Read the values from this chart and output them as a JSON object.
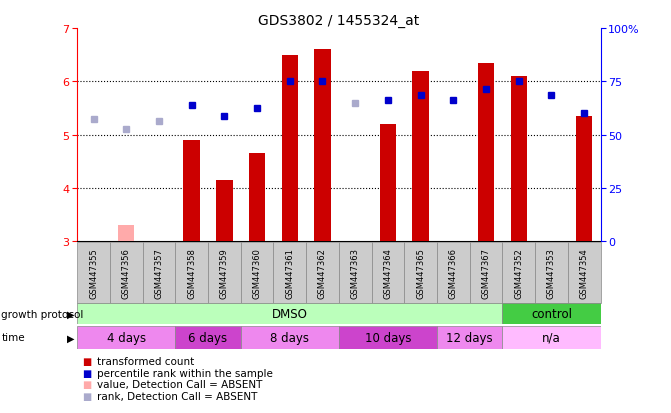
{
  "title": "GDS3802 / 1455324_at",
  "samples": [
    "GSM447355",
    "GSM447356",
    "GSM447357",
    "GSM447358",
    "GSM447359",
    "GSM447360",
    "GSM447361",
    "GSM447362",
    "GSM447363",
    "GSM447364",
    "GSM447365",
    "GSM447366",
    "GSM447367",
    "GSM447352",
    "GSM447353",
    "GSM447354"
  ],
  "bar_values": [
    3.0,
    3.3,
    3.0,
    4.9,
    4.15,
    4.65,
    6.5,
    6.6,
    3.0,
    5.2,
    6.2,
    3.0,
    6.35,
    6.1,
    3.0,
    5.35
  ],
  "bar_absent": [
    true,
    true,
    true,
    false,
    false,
    false,
    false,
    false,
    true,
    false,
    false,
    false,
    false,
    false,
    false,
    false
  ],
  "rank_values": [
    5.3,
    5.1,
    5.25,
    5.55,
    5.35,
    5.5,
    6.0,
    6.0,
    5.6,
    5.65,
    5.75,
    5.65,
    5.85,
    6.0,
    5.75,
    5.4
  ],
  "rank_absent": [
    true,
    true,
    true,
    false,
    false,
    false,
    false,
    false,
    true,
    false,
    false,
    false,
    false,
    false,
    false,
    false
  ],
  "ylim_left": [
    3,
    7
  ],
  "ylim_right": [
    0,
    100
  ],
  "yticks_left": [
    3,
    4,
    5,
    6,
    7
  ],
  "yticks_right": [
    0,
    25,
    50,
    75,
    100
  ],
  "ytick_labels_right": [
    "0",
    "25",
    "50",
    "75",
    "100%"
  ],
  "bar_color": "#cc0000",
  "bar_absent_color": "#ffaaaa",
  "rank_color": "#0000cc",
  "rank_absent_color": "#aaaacc",
  "grid_color": "#000000",
  "bg_color": "#ffffff",
  "protocol_groups": [
    {
      "label": "DMSO",
      "start": 0,
      "end": 13,
      "color": "#bbffbb"
    },
    {
      "label": "control",
      "start": 13,
      "end": 16,
      "color": "#44cc44"
    }
  ],
  "time_groups": [
    {
      "label": "4 days",
      "start": 0,
      "end": 3,
      "color": "#ee88ee"
    },
    {
      "label": "6 days",
      "start": 3,
      "end": 5,
      "color": "#cc44cc"
    },
    {
      "label": "8 days",
      "start": 5,
      "end": 8,
      "color": "#ee88ee"
    },
    {
      "label": "10 days",
      "start": 8,
      "end": 11,
      "color": "#cc44cc"
    },
    {
      "label": "12 days",
      "start": 11,
      "end": 13,
      "color": "#ee88ee"
    },
    {
      "label": "n/a",
      "start": 13,
      "end": 16,
      "color": "#ffbbff"
    }
  ],
  "legend_items": [
    {
      "label": "transformed count",
      "color": "#cc0000"
    },
    {
      "label": "percentile rank within the sample",
      "color": "#0000cc"
    },
    {
      "label": "value, Detection Call = ABSENT",
      "color": "#ffaaaa"
    },
    {
      "label": "rank, Detection Call = ABSENT",
      "color": "#aaaacc"
    }
  ]
}
